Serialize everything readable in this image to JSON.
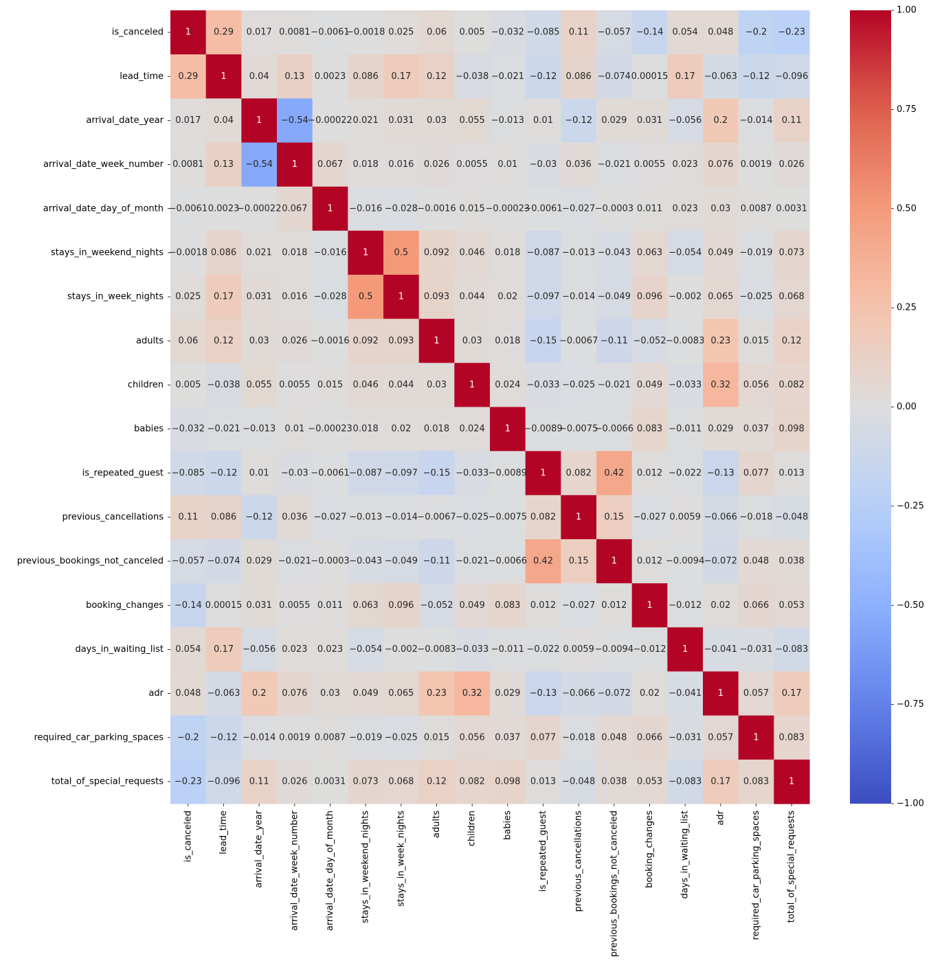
{
  "chart_data": {
    "type": "heatmap",
    "title": "",
    "colormap": "coolwarm",
    "vmin": -1.0,
    "vmax": 1.0,
    "labels": [
      "is_canceled",
      "lead_time",
      "arrival_date_year",
      "arrival_date_week_number",
      "arrival_date_day_of_month",
      "stays_in_weekend_nights",
      "stays_in_week_nights",
      "adults",
      "children",
      "babies",
      "is_repeated_guest",
      "previous_cancellations",
      "previous_bookings_not_canceled",
      "booking_changes",
      "days_in_waiting_list",
      "adr",
      "required_car_parking_spaces",
      "total_of_special_requests"
    ],
    "matrix": [
      [
        1,
        0.29,
        0.017,
        0.0081,
        -0.0061,
        -0.0018,
        0.025,
        0.06,
        0.005,
        -0.032,
        -0.085,
        0.11,
        -0.057,
        -0.14,
        0.054,
        0.048,
        -0.2,
        -0.23
      ],
      [
        0.29,
        1,
        0.04,
        0.13,
        0.0023,
        0.086,
        0.17,
        0.12,
        -0.038,
        -0.021,
        -0.12,
        0.086,
        -0.074,
        0.00015,
        0.17,
        -0.063,
        -0.12,
        -0.096
      ],
      [
        0.017,
        0.04,
        1,
        -0.54,
        -0.00022,
        0.021,
        0.031,
        0.03,
        0.055,
        -0.013,
        0.01,
        -0.12,
        0.029,
        0.031,
        -0.056,
        0.2,
        -0.014,
        0.11
      ],
      [
        0.0081,
        0.13,
        -0.54,
        1,
        0.067,
        0.018,
        0.016,
        0.026,
        0.0055,
        0.01,
        -0.03,
        0.036,
        -0.021,
        0.0055,
        0.023,
        0.076,
        0.0019,
        0.026
      ],
      [
        -0.0061,
        0.0023,
        -0.00022,
        0.067,
        1,
        -0.016,
        -0.028,
        -0.0016,
        0.015,
        -0.00023,
        -0.0061,
        -0.027,
        -0.0003,
        0.011,
        0.023,
        0.03,
        0.0087,
        0.0031
      ],
      [
        -0.0018,
        0.086,
        0.021,
        0.018,
        -0.016,
        1,
        0.5,
        0.092,
        0.046,
        0.018,
        -0.087,
        -0.013,
        -0.043,
        0.063,
        -0.054,
        0.049,
        -0.019,
        0.073
      ],
      [
        0.025,
        0.17,
        0.031,
        0.016,
        -0.028,
        0.5,
        1,
        0.093,
        0.044,
        0.02,
        -0.097,
        -0.014,
        -0.049,
        0.096,
        -0.002,
        0.065,
        -0.025,
        0.068
      ],
      [
        0.06,
        0.12,
        0.03,
        0.026,
        -0.0016,
        0.092,
        0.093,
        1,
        0.03,
        0.018,
        -0.15,
        -0.0067,
        -0.11,
        -0.052,
        -0.0083,
        0.23,
        0.015,
        0.12
      ],
      [
        0.005,
        -0.038,
        0.055,
        0.0055,
        0.015,
        0.046,
        0.044,
        0.03,
        1,
        0.024,
        -0.033,
        -0.025,
        -0.021,
        0.049,
        -0.033,
        0.32,
        0.056,
        0.082
      ],
      [
        -0.032,
        -0.021,
        -0.013,
        0.01,
        -0.00023,
        0.018,
        0.02,
        0.018,
        0.024,
        1,
        -0.0089,
        -0.0075,
        -0.0066,
        0.083,
        -0.011,
        0.029,
        0.037,
        0.098
      ],
      [
        -0.085,
        -0.12,
        0.01,
        -0.03,
        -0.0061,
        -0.087,
        -0.097,
        -0.15,
        -0.033,
        -0.0089,
        1,
        0.082,
        0.42,
        0.012,
        -0.022,
        -0.13,
        0.077,
        0.013
      ],
      [
        0.11,
        0.086,
        -0.12,
        0.036,
        -0.027,
        -0.013,
        -0.014,
        -0.0067,
        -0.025,
        -0.0075,
        0.082,
        1,
        0.15,
        -0.027,
        0.0059,
        -0.066,
        -0.018,
        -0.048
      ],
      [
        -0.057,
        -0.074,
        0.029,
        -0.021,
        -0.0003,
        -0.043,
        -0.049,
        -0.11,
        -0.021,
        -0.0066,
        0.42,
        0.15,
        1,
        0.012,
        -0.0094,
        -0.072,
        0.048,
        0.038
      ],
      [
        -0.14,
        0.00015,
        0.031,
        0.0055,
        0.011,
        0.063,
        0.096,
        -0.052,
        0.049,
        0.083,
        0.012,
        -0.027,
        0.012,
        1,
        -0.012,
        0.02,
        0.066,
        0.053
      ],
      [
        0.054,
        0.17,
        -0.056,
        0.023,
        0.023,
        -0.054,
        -0.002,
        -0.0083,
        -0.033,
        -0.011,
        -0.022,
        0.0059,
        -0.0094,
        -0.012,
        1,
        -0.041,
        -0.031,
        -0.083
      ],
      [
        0.048,
        -0.063,
        0.2,
        0.076,
        0.03,
        0.049,
        0.065,
        0.23,
        0.32,
        0.029,
        -0.13,
        -0.066,
        -0.072,
        0.02,
        -0.041,
        1,
        0.057,
        0.17
      ],
      [
        -0.2,
        -0.12,
        -0.014,
        0.0019,
        0.0087,
        -0.019,
        -0.025,
        0.015,
        0.056,
        0.037,
        0.077,
        -0.018,
        0.048,
        0.066,
        -0.031,
        0.057,
        1,
        0.083
      ],
      [
        -0.23,
        -0.096,
        0.11,
        0.026,
        0.0031,
        0.073,
        0.068,
        0.12,
        0.082,
        0.098,
        0.013,
        -0.048,
        0.038,
        0.053,
        -0.083,
        0.17,
        0.083,
        1
      ]
    ],
    "colorbar_ticks": [
      1.0,
      0.75,
      0.5,
      0.25,
      0.0,
      -0.25,
      -0.5,
      -0.75,
      -1.0
    ],
    "colorbar_tick_labels": [
      "1.00",
      "0.75",
      "0.50",
      "0.25",
      "0.00",
      "−0.25",
      "−0.50",
      "−0.75",
      "−1.00"
    ]
  }
}
